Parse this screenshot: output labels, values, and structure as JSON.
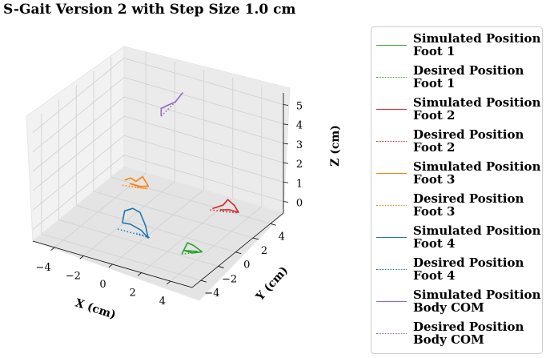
{
  "title": "S-Gait Version 2 with Step Size 1.0 cm",
  "chart_data": {
    "type": "line3d",
    "title": "S-Gait Version 2 with Step Size 1.0 cm",
    "xlabel": "X (cm)",
    "ylabel": "Y (cm)",
    "zlabel": "Z (cm)",
    "xlim": [
      -5.5,
      5.5
    ],
    "ylim": [
      -5,
      5.5
    ],
    "zlim": [
      -0.6,
      5.6
    ],
    "xticks": [
      -4,
      -2,
      0,
      2,
      4
    ],
    "yticks": [
      -4,
      -2,
      0,
      2,
      4
    ],
    "zticks": [
      0,
      1,
      2,
      3,
      4,
      5
    ],
    "xtick_labels": [
      "−4",
      "−2",
      "0",
      "2",
      "4"
    ],
    "ytick_labels": [
      "−4",
      "−2",
      "0",
      "2",
      "4"
    ],
    "ztick_labels": [
      "0",
      "1",
      "2",
      "3",
      "4",
      "5"
    ],
    "grid": true,
    "legend_position": "right",
    "colors": {
      "foot1": "#2ca02c",
      "foot2": "#d62728",
      "foot3": "#ff7f0e",
      "foot4": "#1f77b4",
      "body": "#9467bd"
    },
    "series": [
      {
        "name_line1": "Simulated Position",
        "name_line2": "Foot 1",
        "color": "#2ca02c",
        "style": "solid",
        "points": [
          [
            3.6,
            -3.0,
            0.0
          ],
          [
            3.8,
            -2.7,
            0.5
          ],
          [
            4.1,
            -2.5,
            0.35
          ],
          [
            4.5,
            -2.2,
            0.0
          ],
          [
            4.1,
            -2.6,
            0.0
          ],
          [
            3.7,
            -2.9,
            0.15
          ],
          [
            4.3,
            -2.4,
            0.05
          ]
        ]
      },
      {
        "name_line1": "Desired Position",
        "name_line2": "Foot 1",
        "color": "#2ca02c",
        "style": "dotted",
        "points": [
          [
            3.6,
            -3.05,
            0.0
          ],
          [
            4.4,
            -2.3,
            0.0
          ],
          [
            4.0,
            -2.7,
            0.0
          ]
        ]
      },
      {
        "name_line1": "Simulated Position",
        "name_line2": "Foot 2",
        "color": "#d62728",
        "style": "solid",
        "points": [
          [
            2.4,
            2.5,
            0.05
          ],
          [
            2.9,
            2.9,
            0.2
          ],
          [
            3.1,
            3.1,
            0.45
          ],
          [
            3.5,
            3.2,
            0.2
          ],
          [
            3.9,
            3.0,
            0.0
          ],
          [
            3.4,
            2.8,
            0.1
          ],
          [
            2.8,
            2.7,
            0.0
          ]
        ]
      },
      {
        "name_line1": "Desired Position",
        "name_line2": "Foot 2",
        "color": "#d62728",
        "style": "dotted",
        "points": [
          [
            2.3,
            2.4,
            0.0
          ],
          [
            3.8,
            2.9,
            0.0
          ],
          [
            3.0,
            2.6,
            0.0
          ]
        ]
      },
      {
        "name_line1": "Simulated Position",
        "name_line2": "Foot 3",
        "color": "#ff7f0e",
        "style": "solid",
        "points": [
          [
            -3.6,
            2.4,
            0.25
          ],
          [
            -3.3,
            2.6,
            0.35
          ],
          [
            -3.0,
            2.7,
            0.2
          ],
          [
            -2.6,
            2.8,
            0.5
          ],
          [
            -2.2,
            2.8,
            0.1
          ],
          [
            -2.7,
            2.6,
            0.05
          ],
          [
            -3.3,
            2.5,
            0.1
          ]
        ]
      },
      {
        "name_line1": "Desired Position",
        "name_line2": "Foot 3",
        "color": "#ff7f0e",
        "style": "dotted",
        "points": [
          [
            -3.7,
            2.3,
            0.0
          ],
          [
            -2.2,
            2.7,
            0.0
          ],
          [
            -3.0,
            2.5,
            0.0
          ]
        ]
      },
      {
        "name_line1": "Simulated Position",
        "name_line2": "Foot 4",
        "color": "#1f77b4",
        "style": "solid",
        "points": [
          [
            -1.0,
            -2.2,
            0.3
          ],
          [
            -0.9,
            -2.1,
            0.9
          ],
          [
            -0.4,
            -2.0,
            1.1
          ],
          [
            0.1,
            -2.0,
            1.0
          ],
          [
            0.6,
            -2.2,
            0.5
          ],
          [
            0.9,
            -2.4,
            0.0
          ],
          [
            0.3,
            -2.2,
            0.2
          ],
          [
            -0.5,
            -2.1,
            0.3
          ],
          [
            -1.0,
            -2.2,
            0.3
          ]
        ]
      },
      {
        "name_line1": "Desired Position",
        "name_line2": "Foot 4",
        "color": "#1f77b4",
        "style": "dotted",
        "points": [
          [
            -1.2,
            -2.4,
            0.0
          ],
          [
            0.9,
            -2.3,
            0.0
          ],
          [
            0.0,
            -2.25,
            0.0
          ]
        ]
      },
      {
        "name_line1": "Simulated Position",
        "name_line2": "Body COM",
        "color": "#9467bd",
        "style": "solid",
        "points": [
          [
            -1.2,
            2.6,
            4.0
          ],
          [
            -1.2,
            2.6,
            4.4
          ],
          [
            -0.8,
            2.8,
            4.6
          ],
          [
            -0.4,
            2.9,
            4.8
          ],
          [
            0.0,
            3.1,
            5.3
          ]
        ]
      },
      {
        "name_line1": "Desired Position",
        "name_line2": "Body COM",
        "color": "#9467bd",
        "style": "dotted",
        "points": [
          [
            -1.2,
            2.6,
            4.0
          ],
          [
            -0.4,
            2.9,
            4.8
          ]
        ]
      }
    ]
  }
}
